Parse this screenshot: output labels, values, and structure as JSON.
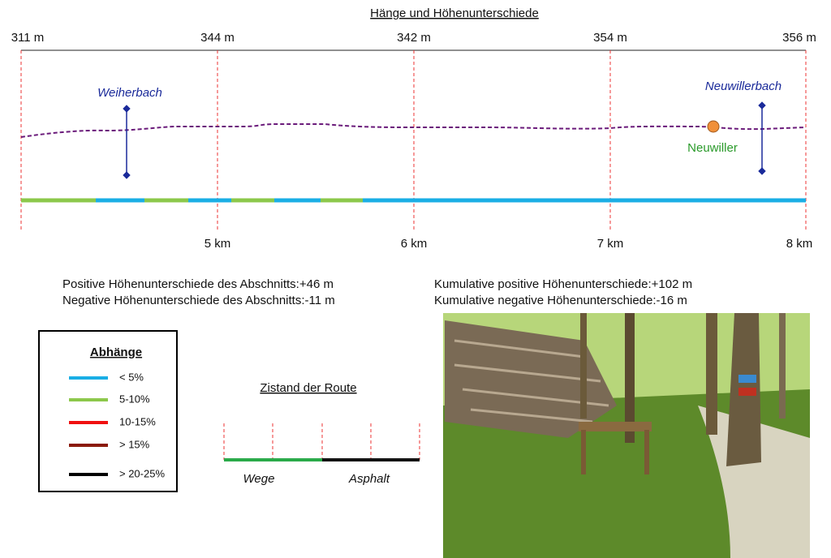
{
  "header": {
    "title": "Hänge und Höhenunterschiede"
  },
  "profile": {
    "elevations": [
      "311 m",
      "344 m",
      "342 m",
      "354 m",
      "356 m"
    ],
    "distances": [
      "5 km",
      "6 km",
      "7 km",
      "8 km"
    ],
    "streams": [
      "Weiherbach",
      "Neuwillerbach"
    ],
    "place": "Neuwiller"
  },
  "stats": {
    "section": [
      "Positive Höhenunterschiede des Abschnitts:+46 m",
      "Negative Höhenunterschiede des Abschnitts:-11 m"
    ],
    "cumulative": [
      "Kumulative positive Höhenunterschiede:+102 m",
      "Kumulative negative Höhenunterschiede:-16 m"
    ]
  },
  "legend": {
    "title": "Abhänge",
    "items": [
      "< 5%",
      "5-10%",
      "10-15%",
      "> 15%",
      "> 20-25%"
    ]
  },
  "route": {
    "title": "Zistand der Route",
    "segments": [
      "Wege",
      "Asphalt"
    ]
  }
}
